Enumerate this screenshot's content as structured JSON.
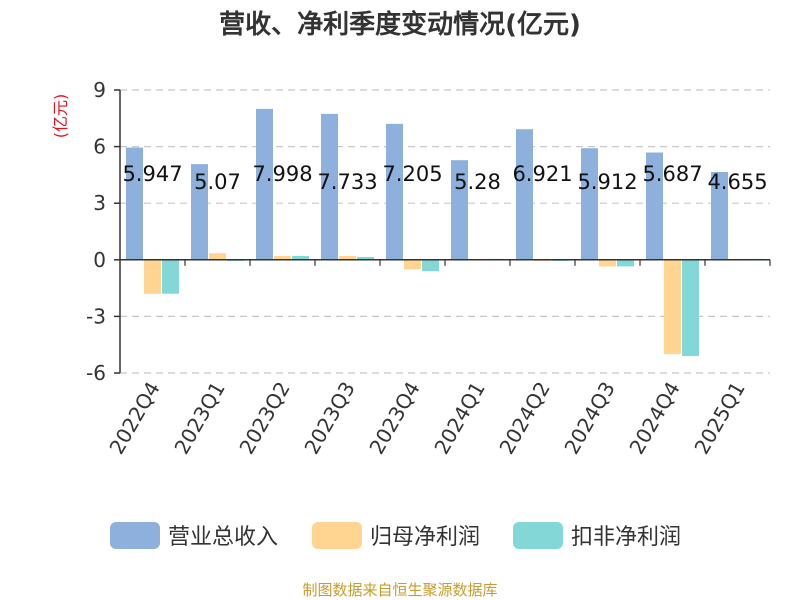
{
  "chart_data": {
    "type": "bar",
    "title": "营收、净利季度变动情况(亿元)",
    "unit": "(亿元)",
    "categories": [
      "2022Q4",
      "2023Q1",
      "2023Q2",
      "2023Q3",
      "2023Q4",
      "2024Q1",
      "2024Q2",
      "2024Q3",
      "2024Q4",
      "2025Q1"
    ],
    "series": [
      {
        "name": "营业总收入",
        "color": "#8eb0dc",
        "values": [
          5.947,
          5.07,
          7.998,
          7.733,
          7.205,
          5.28,
          6.921,
          5.912,
          5.687,
          4.655
        ],
        "labels": [
          "5.947",
          "5.07",
          "7.998",
          "7.733",
          "7.205",
          "5.28",
          "6.921",
          "5.912",
          "5.687",
          "4.655"
        ]
      },
      {
        "name": "归母净利润",
        "color": "#ffd591",
        "values": [
          -1.8,
          0.35,
          0.2,
          0.2,
          -0.5,
          0.05,
          0.02,
          -0.35,
          -5.0,
          0.05
        ]
      },
      {
        "name": "扣非净利润",
        "color": "#84d7d7",
        "values": [
          -1.8,
          0.02,
          0.2,
          0.15,
          -0.6,
          0.05,
          0.02,
          -0.35,
          -5.1,
          0.05
        ]
      }
    ],
    "ylim": [
      -6,
      9
    ],
    "yticks": [
      -6,
      -3,
      0,
      3,
      6,
      9
    ],
    "grid": true,
    "legend_position": "bottom"
  },
  "source": "制图数据来自恒生聚源数据库"
}
